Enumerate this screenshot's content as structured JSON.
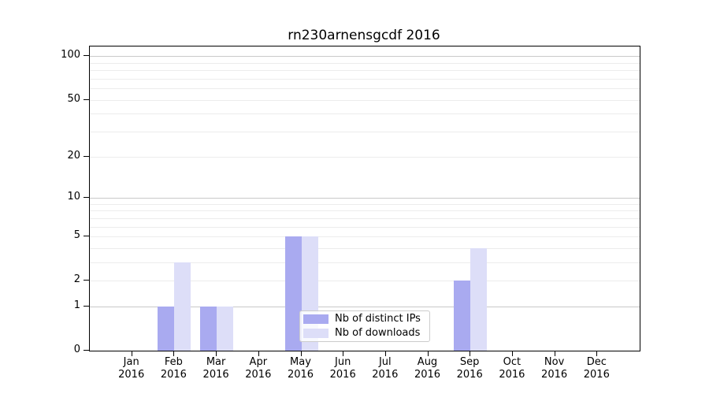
{
  "chart_data": {
    "type": "bar",
    "title": "rn230arnensgcdf 2016",
    "categories": [
      "Jan 2016",
      "Feb 2016",
      "Mar 2016",
      "Apr 2016",
      "May 2016",
      "Jun 2016",
      "Jul 2016",
      "Aug 2016",
      "Sep 2016",
      "Oct 2016",
      "Nov 2016",
      "Dec 2016"
    ],
    "series": [
      {
        "name": "Nb of distinct IPs",
        "color": "#a9aaf0",
        "values": [
          0,
          1,
          1,
          0,
          5,
          0,
          0,
          0,
          2,
          0,
          0,
          0
        ]
      },
      {
        "name": "Nb of downloads",
        "color": "#dddef8",
        "values": [
          0,
          3,
          1,
          0,
          5,
          0,
          0,
          0,
          4,
          0,
          0,
          0
        ]
      }
    ],
    "xlabel": "",
    "ylabel": "",
    "yscale": "log1p",
    "ylim": [
      0,
      100
    ],
    "ytick_labels": [
      100,
      50,
      20,
      10,
      5,
      2,
      1,
      0
    ],
    "gridlines": {
      "major": [
        1,
        10,
        100
      ],
      "minor": [
        2,
        3,
        4,
        5,
        6,
        7,
        8,
        9,
        20,
        30,
        40,
        50,
        60,
        70,
        80,
        90
      ]
    },
    "grid": "on",
    "legend_position": "inside-lower-center"
  },
  "colors": {
    "bar_distinct_ips": "#a9aaf0",
    "bar_downloads": "#dddef8",
    "grid_major": "#c9c9c9",
    "grid_minor": "#ececec",
    "spine": "#000000",
    "legend_border": "#cccccc"
  }
}
